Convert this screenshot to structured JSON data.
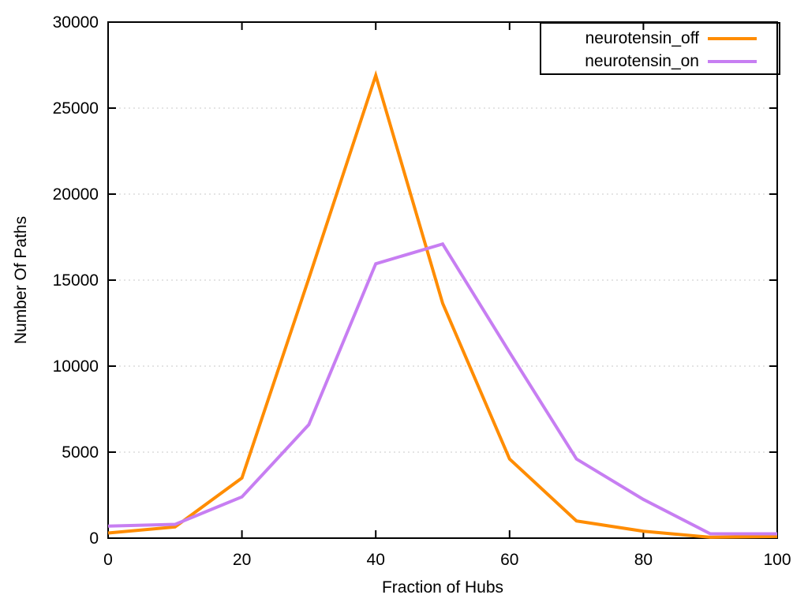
{
  "chart_data": {
    "type": "line",
    "title": "",
    "xlabel": "Fraction of Hubs",
    "ylabel": "Number Of Paths",
    "xlim": [
      0,
      100
    ],
    "ylim": [
      0,
      30000
    ],
    "xticks": [
      0,
      20,
      40,
      60,
      80,
      100
    ],
    "yticks": [
      0,
      5000,
      10000,
      15000,
      20000,
      25000,
      30000
    ],
    "grid": "horizontal-dotted",
    "legend_position": "top-right-boxed",
    "x": [
      0,
      10,
      20,
      30,
      40,
      50,
      60,
      70,
      80,
      90,
      100
    ],
    "series": [
      {
        "name": "neurotensin_off",
        "color": "#ff8c00",
        "values": [
          300,
          650,
          3500,
          15100,
          26900,
          13650,
          4600,
          1000,
          400,
          50,
          100
        ]
      },
      {
        "name": "neurotensin_on",
        "color": "#c77ef2",
        "values": [
          700,
          800,
          2400,
          6600,
          15950,
          17100,
          10800,
          4600,
          2250,
          250,
          250
        ]
      }
    ],
    "colors": {
      "axis": "#000000",
      "grid": "#c8c8c8",
      "background": "#ffffff"
    }
  }
}
